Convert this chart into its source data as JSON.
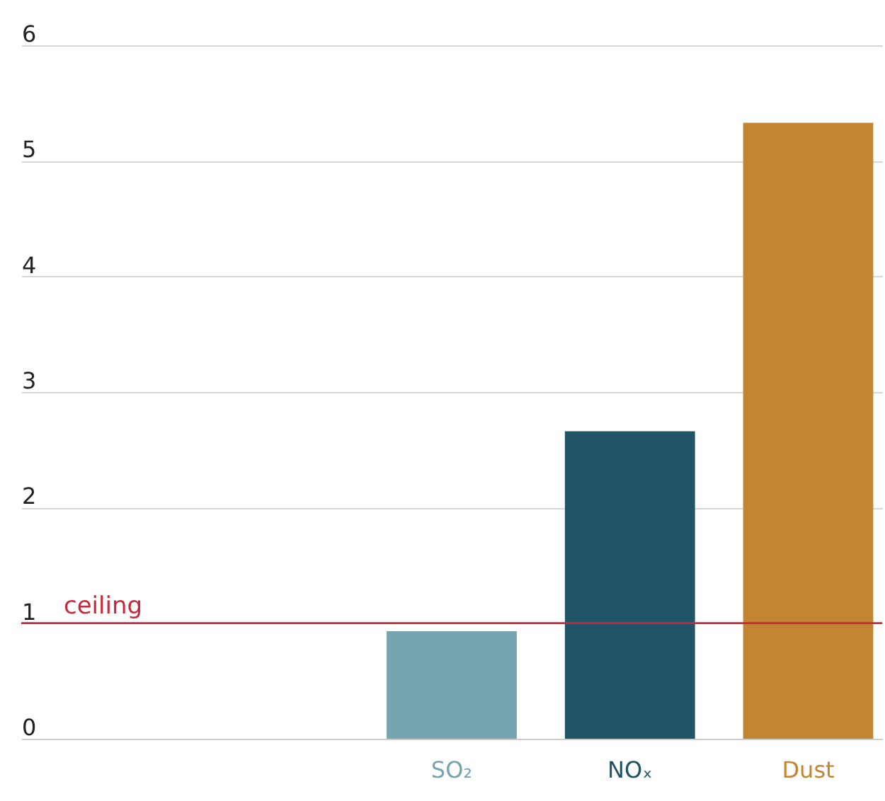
{
  "chart_data": {
    "type": "bar",
    "categories": [
      null,
      null,
      "SO₂",
      "NOₓ",
      "Dust"
    ],
    "values": [
      null,
      null,
      0.93,
      2.66,
      5.33
    ],
    "colors": [
      "#76a4b0",
      "#76a4b0",
      "#76a4b0",
      "#215466",
      "#c38533"
    ],
    "ylim": [
      0,
      6
    ],
    "yticks": [
      0,
      1,
      2,
      3,
      4,
      5,
      6
    ],
    "grid": "y",
    "ref_lines": [
      {
        "axis": "y",
        "value": 1,
        "label": "ceiling",
        "color": "#c8283c"
      }
    ]
  }
}
